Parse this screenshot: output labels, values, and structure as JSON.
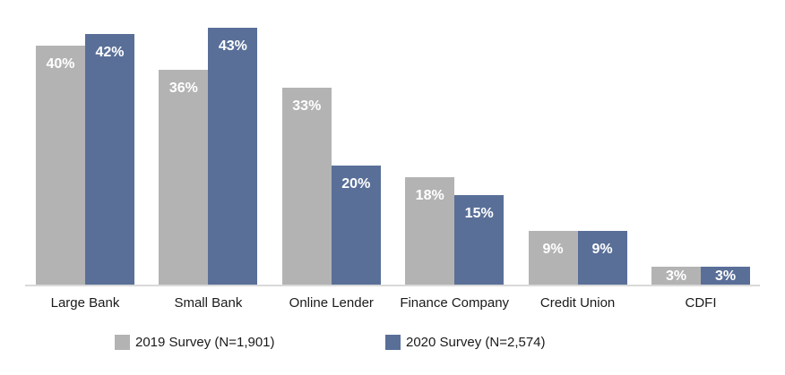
{
  "colors": {
    "2019": "#b3b3b3",
    "2020": "#596f98"
  },
  "chart_data": {
    "type": "bar",
    "title": "",
    "xlabel": "",
    "ylabel": "",
    "categories": [
      "Large Bank",
      "Small Bank",
      "Online Lender",
      "Finance Company",
      "Credit Union",
      "CDFI"
    ],
    "series": [
      {
        "name": "2019 Survey (N=1,901)",
        "values": [
          40,
          36,
          33,
          18,
          9,
          3
        ],
        "color": "#b3b3b3"
      },
      {
        "name": "2020 Survey (N=2,574)",
        "values": [
          42,
          43,
          20,
          15,
          9,
          3
        ],
        "color": "#596f98"
      }
    ],
    "labels_2019": [
      "40%",
      "36%",
      "33%",
      "18%",
      "9%",
      "3%"
    ],
    "labels_2020": [
      "42%",
      "43%",
      "20%",
      "15%",
      "9%",
      "3%"
    ],
    "ylim": [
      0,
      45
    ],
    "grid": false,
    "legend_position": "bottom",
    "data_labels": true
  },
  "legend": {
    "item_2019": "2019 Survey (N=1,901)",
    "item_2020": "2020 Survey (N=2,574)"
  }
}
